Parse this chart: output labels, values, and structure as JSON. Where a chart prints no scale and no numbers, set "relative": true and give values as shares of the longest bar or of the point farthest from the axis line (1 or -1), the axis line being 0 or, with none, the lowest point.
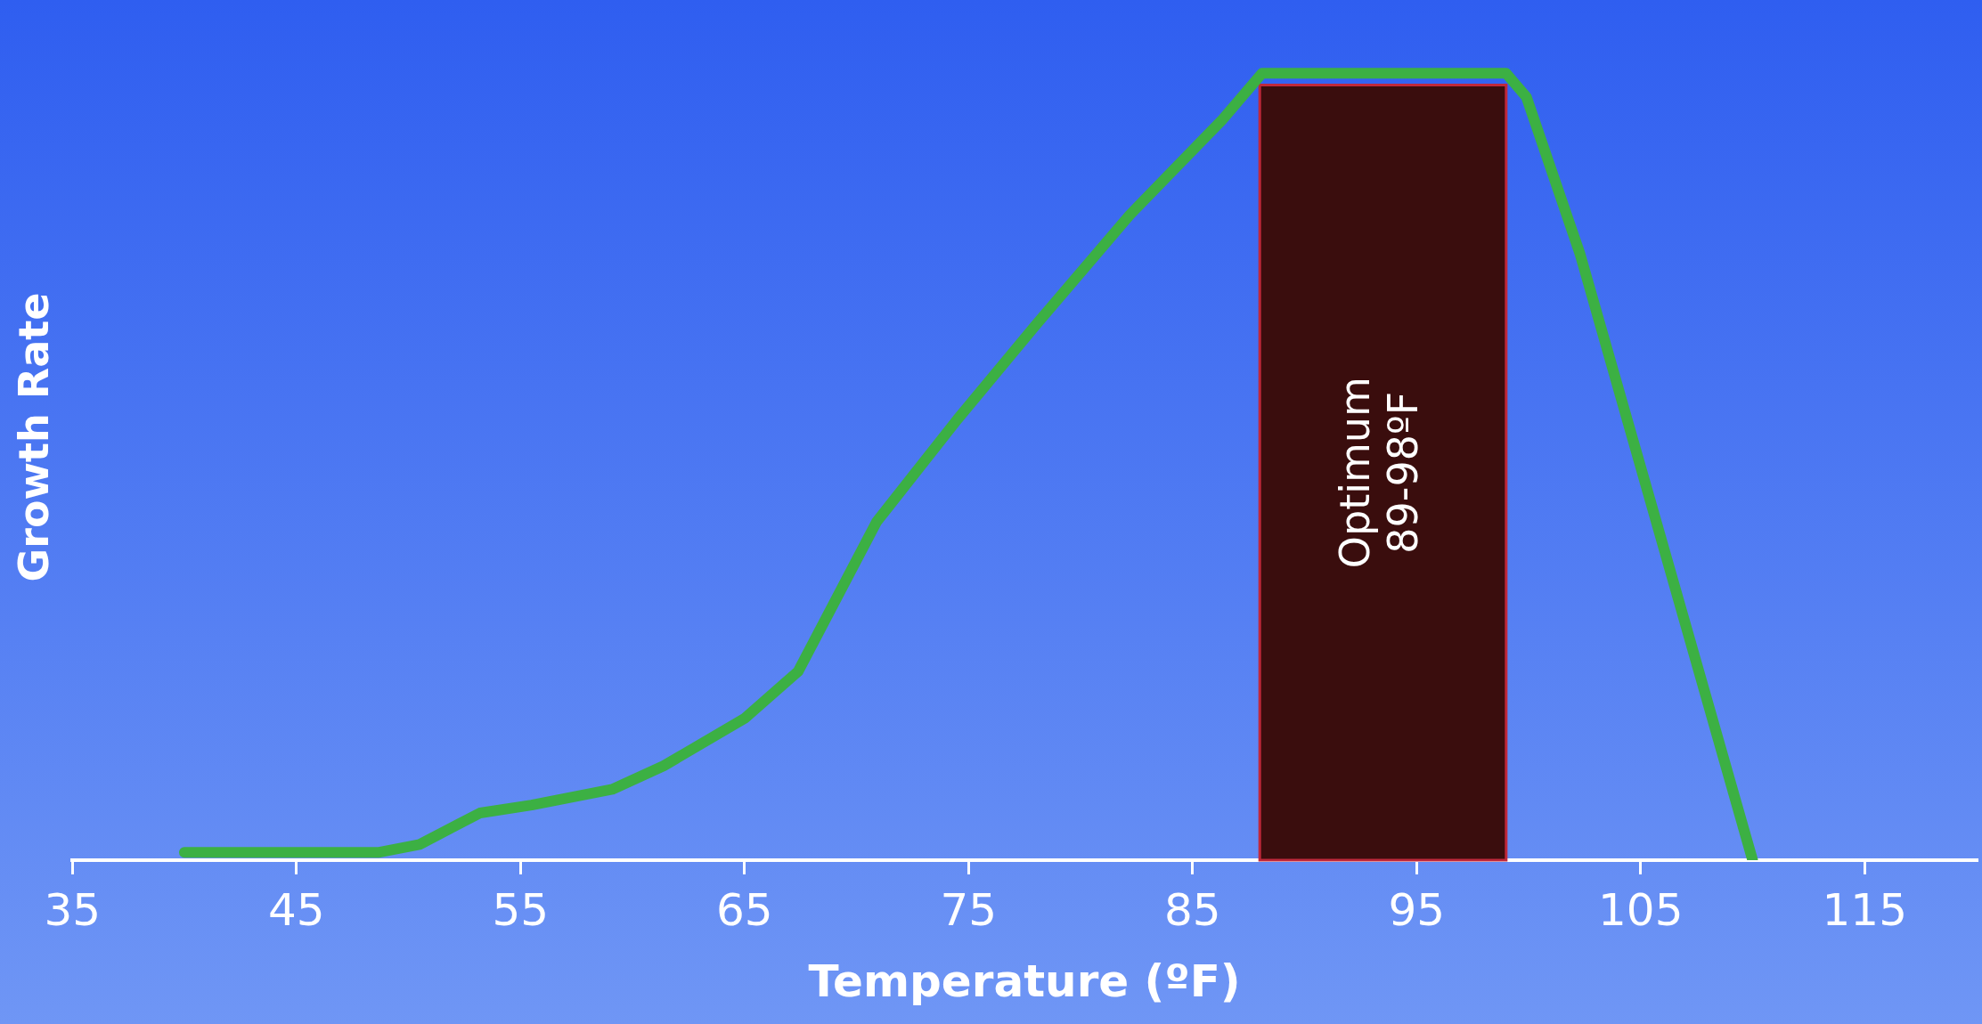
{
  "chart_data": {
    "type": "line",
    "xlabel": "Temperature (ºF)",
    "ylabel": "Growth Rate",
    "relative": true,
    "legend": false,
    "grid": false,
    "marker": "none",
    "line_style": "solid",
    "xlim": [
      35,
      120
    ],
    "xticks": [
      35,
      45,
      55,
      65,
      75,
      85,
      95,
      105,
      115
    ],
    "series": [
      {
        "color": "#3cb043",
        "x": [
          40,
          48.7,
          50.5,
          53.2,
          55.5,
          59.1,
          61.4,
          65,
          67.4,
          70.9,
          74.5,
          78,
          82.2,
          86.3,
          88.1,
          99,
          99.9,
          102.3,
          104.6,
          110
        ],
        "values": [
          0.01,
          0.01,
          0.02,
          0.06,
          0.07,
          0.09,
          0.12,
          0.18,
          0.24,
          0.43,
          0.56,
          0.68,
          0.82,
          0.94,
          1,
          1,
          0.97,
          0.77,
          0.54,
          0
        ]
      }
    ],
    "bands": [
      {
        "axis": "x",
        "from": 88,
        "to": 99,
        "label": "Optimum 89-98ºF",
        "color": "#3a0d0d"
      }
    ]
  }
}
